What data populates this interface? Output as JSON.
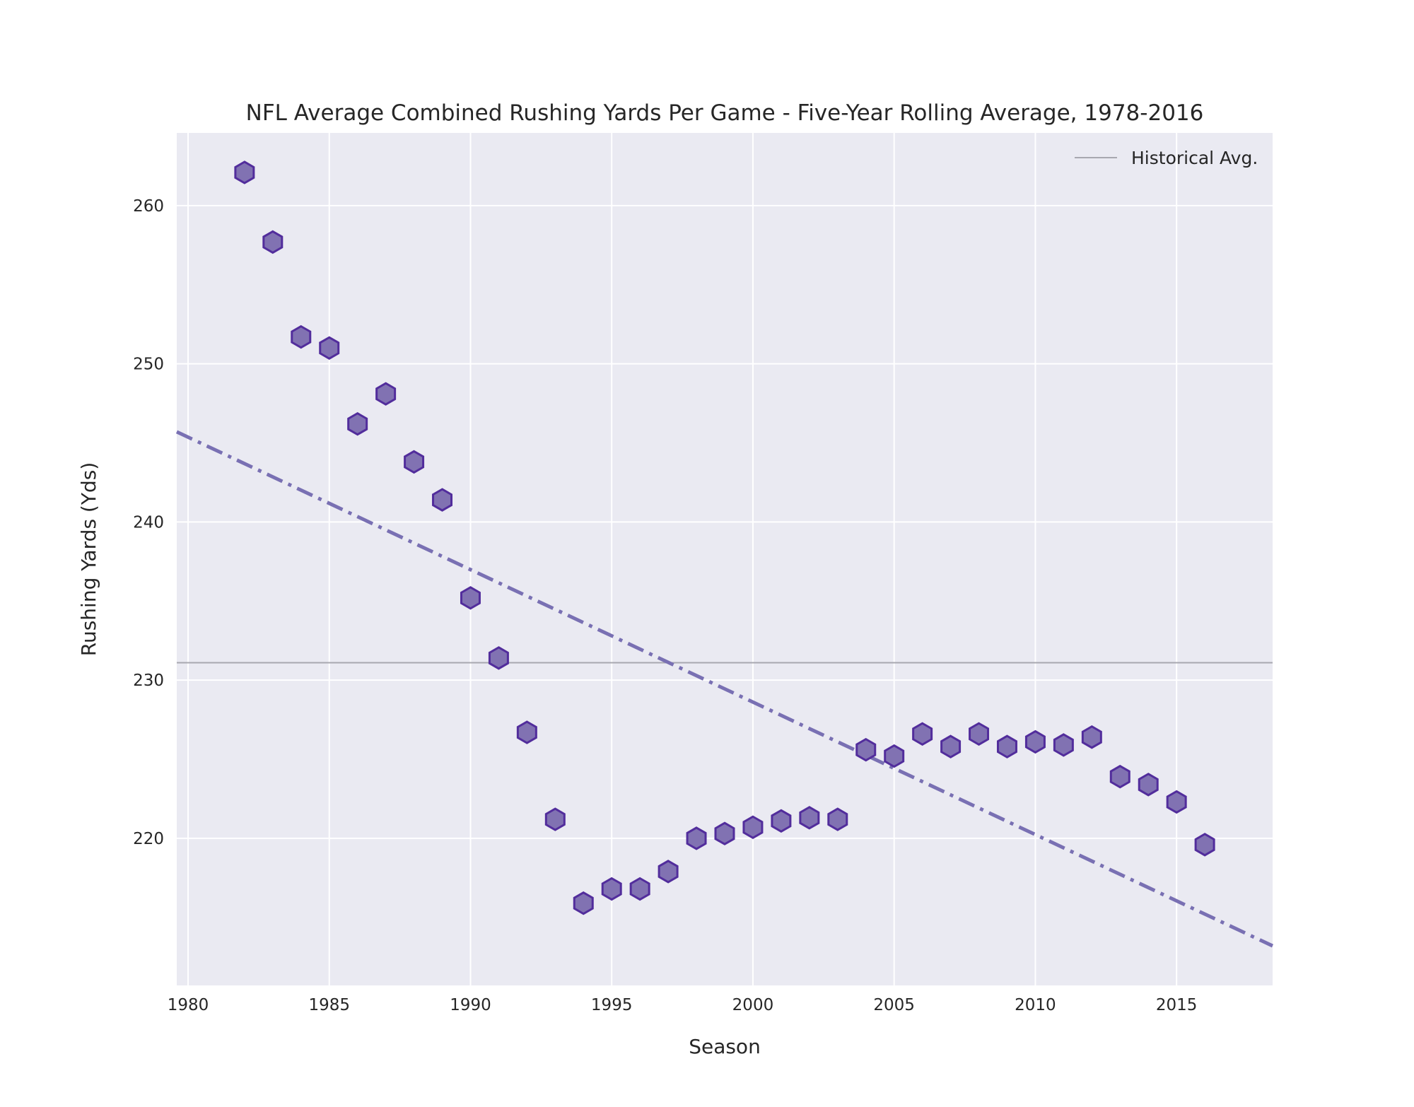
{
  "chart_data": {
    "type": "scatter",
    "title": "NFL Average Combined Rushing Yards Per Game - Five-Year Rolling Average, 1978-2016",
    "xlabel": "Season",
    "ylabel": "Rushing Yards (Yds)",
    "xlim": [
      1979.6,
      2018.4
    ],
    "ylim": [
      210.7,
      264.6
    ],
    "x_ticks": [
      1980,
      1985,
      1990,
      1995,
      2000,
      2005,
      2010,
      2015
    ],
    "y_ticks": [
      220,
      230,
      240,
      250,
      260
    ],
    "grid": true,
    "series": [
      {
        "marker": "hexagon",
        "color": "#8172b2",
        "edge_color": "#522d9c",
        "x": [
          1982,
          1983,
          1984,
          1985,
          1986,
          1987,
          1988,
          1989,
          1990,
          1991,
          1992,
          1993,
          1994,
          1995,
          1996,
          1997,
          1998,
          1999,
          2000,
          2001,
          2002,
          2003,
          2004,
          2005,
          2006,
          2007,
          2008,
          2009,
          2010,
          2011,
          2012,
          2013,
          2014,
          2015,
          2016
        ],
        "y": [
          262.1,
          257.7,
          251.7,
          251.0,
          246.2,
          248.1,
          243.8,
          241.4,
          235.2,
          231.4,
          226.7,
          221.2,
          215.9,
          216.8,
          216.8,
          217.9,
          220.0,
          220.3,
          220.7,
          221.1,
          221.3,
          221.2,
          225.6,
          225.2,
          226.6,
          225.8,
          226.6,
          225.8,
          226.1,
          225.9,
          226.4,
          223.9,
          223.4,
          222.3,
          219.6
        ]
      }
    ],
    "trend_line": {
      "color": "#7970b3",
      "style": "dash-dot",
      "start": [
        1979.6,
        245.7
      ],
      "end": [
        2018.4,
        213.2
      ]
    },
    "reference_line": {
      "name": "Historical Avg.",
      "color": "#a8a8b0",
      "y": 231.1
    },
    "legend": {
      "position": "top-right",
      "entries": [
        "Historical Avg."
      ]
    },
    "colors": {
      "plot_background": "#eaeaf2",
      "grid": "#ffffff"
    }
  }
}
